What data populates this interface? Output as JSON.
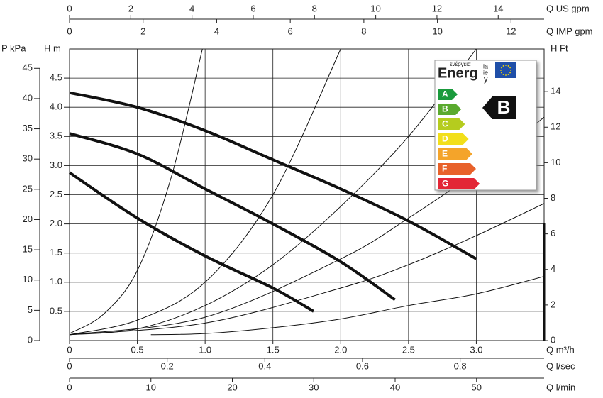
{
  "chart_data": {
    "type": "line",
    "x_label": "Q m³/h",
    "y_label": "H m",
    "xlim": [
      0,
      3.5
    ],
    "xticks": [
      0,
      0.5,
      {
        "value": 1,
        "label": "1.0"
      },
      1.5,
      {
        "value": 2,
        "label": "2.0"
      },
      2.5,
      {
        "value": 3,
        "label": "3.0"
      }
    ],
    "ylim": [
      0,
      5
    ],
    "yticks": [
      0.5,
      {
        "value": 1,
        "label": "1.0"
      },
      1.5,
      {
        "value": 2,
        "label": "2.0"
      },
      2.5,
      {
        "value": 3,
        "label": "3.0"
      },
      3.5,
      {
        "value": 4,
        "label": "4.0"
      },
      4.5
    ],
    "grid": true,
    "axes": [
      {
        "label": "P kPa",
        "side": "left",
        "lim": [
          0,
          48.2
        ],
        "ticks": [
          0,
          5,
          10,
          15,
          20,
          25,
          30,
          35,
          40,
          45
        ]
      },
      {
        "label": "H Ft",
        "side": "right",
        "lim": [
          0,
          16.4
        ],
        "ticks": [
          0,
          2,
          4,
          6,
          8,
          10,
          12,
          14
        ]
      },
      {
        "label": "Q US gpm",
        "side": "top",
        "lim": [
          0,
          15.5
        ],
        "ticks": [
          0,
          2,
          4,
          6,
          8,
          10,
          12,
          14
        ]
      },
      {
        "label": "Q IMP gpm",
        "side": "top2",
        "lim": [
          0,
          12.9
        ],
        "ticks": [
          0,
          2,
          4,
          6,
          8,
          10,
          12
        ]
      },
      {
        "label": "Q l/sec",
        "side": "bottom",
        "lim": [
          0,
          0.972
        ],
        "ticks": [
          0,
          0.2,
          0.4,
          0.6,
          0.8
        ]
      },
      {
        "label": "Q l/min",
        "side": "bottom2",
        "lim": [
          0,
          58.3
        ],
        "ticks": [
          0,
          10,
          20,
          30,
          40,
          50
        ]
      }
    ],
    "series": [
      {
        "color": "#111111",
        "width": 4,
        "x": [
          0,
          0.5,
          1,
          1.5,
          2,
          2.5,
          3
        ],
        "values": [
          4.25,
          4.0,
          3.6,
          3.1,
          2.6,
          2.05,
          1.4
        ]
      },
      {
        "color": "#111111",
        "width": 4,
        "x": [
          0,
          0.5,
          1,
          1.5,
          2,
          2.4
        ],
        "values": [
          3.55,
          3.2,
          2.6,
          2.0,
          1.35,
          0.7
        ]
      },
      {
        "color": "#111111",
        "width": 4,
        "x": [
          0,
          0.5,
          1,
          1.5,
          1.8
        ],
        "values": [
          2.88,
          2.1,
          1.45,
          0.9,
          0.5
        ]
      },
      {
        "color": "#111111",
        "width": 1,
        "x": [
          0,
          0.25,
          0.5,
          0.75,
          0.98
        ],
        "values": [
          0.12,
          0.45,
          1.2,
          2.8,
          5.0
        ]
      },
      {
        "color": "#111111",
        "width": 1,
        "x": [
          0,
          0.5,
          1,
          1.5,
          2
        ],
        "values": [
          0.1,
          0.35,
          1.0,
          2.5,
          5.0
        ]
      },
      {
        "color": "#111111",
        "width": 1,
        "x": [
          0,
          0.5,
          1,
          1.5,
          2,
          2.5,
          3
        ],
        "values": [
          0.1,
          0.2,
          0.6,
          1.3,
          2.3,
          3.5,
          5.0
        ]
      },
      {
        "color": "#111111",
        "width": 1,
        "x": [
          0,
          1,
          2,
          2.5,
          3,
          3.5
        ],
        "values": [
          0.1,
          0.4,
          1.4,
          2.1,
          2.9,
          3.83
        ]
      },
      {
        "color": "#111111",
        "width": 1,
        "x": [
          0,
          1,
          2,
          2.5,
          3,
          3.5
        ],
        "values": [
          0.1,
          0.3,
          0.9,
          1.3,
          1.8,
          2.35
        ]
      },
      {
        "color": "#111111",
        "width": 1,
        "x": [
          0.6,
          1,
          1.5,
          2,
          2.5,
          3,
          3.5
        ],
        "values": [
          0.1,
          0.12,
          0.22,
          0.37,
          0.6,
          0.8,
          1.1
        ]
      }
    ]
  },
  "energy_label": {
    "wordmark_small": "ενέργεια",
    "wordmark": "Energ",
    "suffix_top": "ia",
    "suffix_mid": "ie",
    "suffix_bottom": "y",
    "classes": [
      {
        "label": "A",
        "color": "#1a9a3c"
      },
      {
        "label": "B",
        "color": "#5aaa2e"
      },
      {
        "label": "C",
        "color": "#b5cc1e"
      },
      {
        "label": "D",
        "color": "#f2df1a"
      },
      {
        "label": "E",
        "color": "#f4a42a"
      },
      {
        "label": "F",
        "color": "#e8612a"
      },
      {
        "label": "G",
        "color": "#e32636"
      }
    ],
    "rating": "B"
  }
}
